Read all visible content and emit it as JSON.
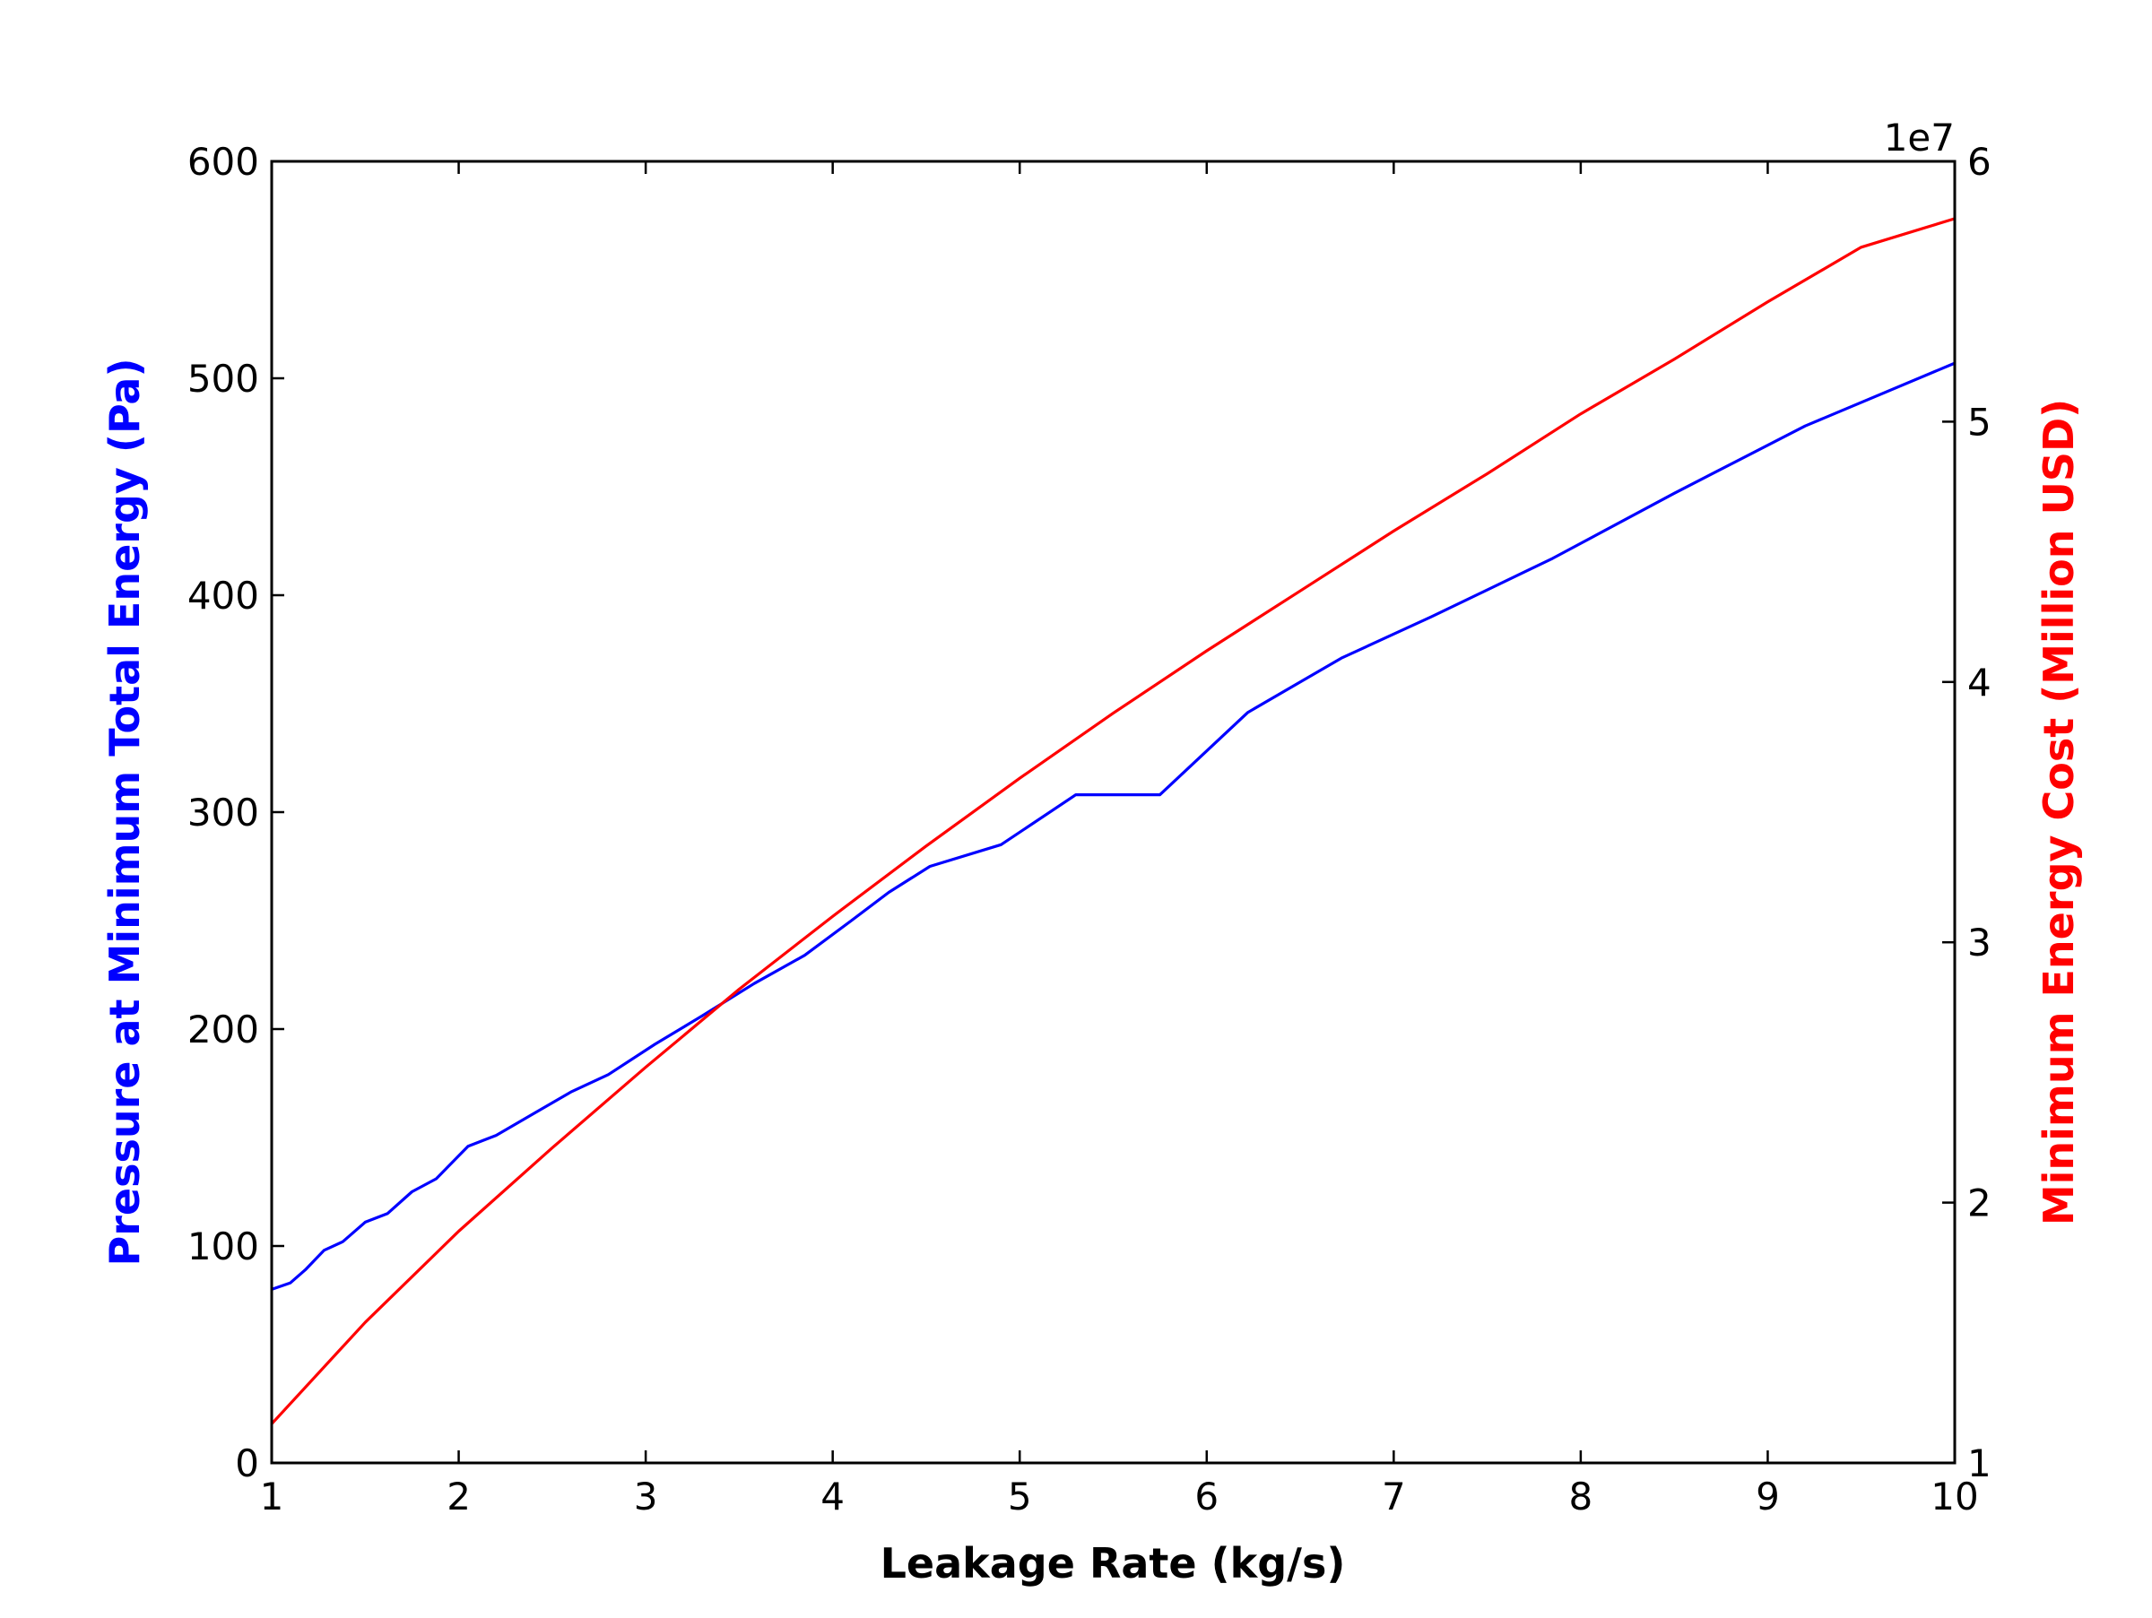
{
  "chart_data": {
    "type": "line",
    "title": "",
    "xlabel": "Leakage Rate (kg/s)",
    "xlim": [
      1,
      10
    ],
    "x_ticks": [
      "1",
      "2",
      "3",
      "4",
      "5",
      "6",
      "7",
      "8",
      "9",
      "10"
    ],
    "y_left": {
      "label": "Pressure at Minimum Total Energy (Pa)",
      "color": "#0000ff",
      "ylim": [
        0,
        600
      ],
      "ticks": [
        "0",
        "100",
        "200",
        "300",
        "400",
        "500",
        "600"
      ]
    },
    "y_right": {
      "label": "Minimum Energy Cost (Million USD)",
      "color": "#ff0000",
      "ylim": [
        10000000,
        60000000
      ],
      "ticks": [
        "1",
        "2",
        "3",
        "4",
        "5",
        "6"
      ],
      "offset_text": "1e7"
    },
    "grid": false,
    "series": [
      {
        "axis": "left",
        "color": "#0000ff",
        "points": [
          [
            1.0,
            80
          ],
          [
            1.1,
            83
          ],
          [
            1.18,
            89
          ],
          [
            1.28,
            98
          ],
          [
            1.38,
            102
          ],
          [
            1.5,
            111
          ],
          [
            1.62,
            115
          ],
          [
            1.75,
            125
          ],
          [
            1.88,
            131
          ],
          [
            2.05,
            146
          ],
          [
            2.2,
            151
          ],
          [
            2.4,
            161
          ],
          [
            2.6,
            171
          ],
          [
            2.8,
            179
          ],
          [
            3.05,
            193
          ],
          [
            3.3,
            206
          ],
          [
            3.58,
            221
          ],
          [
            3.85,
            234
          ],
          [
            4.1,
            250
          ],
          [
            4.3,
            263
          ],
          [
            4.52,
            275
          ],
          [
            4.9,
            285
          ],
          [
            5.3,
            308
          ],
          [
            5.75,
            308
          ],
          [
            6.22,
            346
          ],
          [
            6.72,
            371
          ],
          [
            7.2,
            390
          ],
          [
            7.85,
            417
          ],
          [
            8.5,
            447
          ],
          [
            9.2,
            478
          ],
          [
            10.0,
            507
          ]
        ]
      },
      {
        "axis": "right",
        "color": "#ff0000",
        "points": [
          [
            1.0,
            11500000
          ],
          [
            1.5,
            15400000
          ],
          [
            2.0,
            18900000
          ],
          [
            2.5,
            22100000
          ],
          [
            3.0,
            25200000
          ],
          [
            3.5,
            28200000
          ],
          [
            4.0,
            31000000
          ],
          [
            4.5,
            33700000
          ],
          [
            5.0,
            36300000
          ],
          [
            5.5,
            38800000
          ],
          [
            6.0,
            41200000
          ],
          [
            6.5,
            43500000
          ],
          [
            7.0,
            45800000
          ],
          [
            7.5,
            48000000
          ],
          [
            8.0,
            50300000
          ],
          [
            8.5,
            52400000
          ],
          [
            9.0,
            54600000
          ],
          [
            9.5,
            56700000
          ],
          [
            10.0,
            57800000
          ]
        ]
      }
    ]
  }
}
